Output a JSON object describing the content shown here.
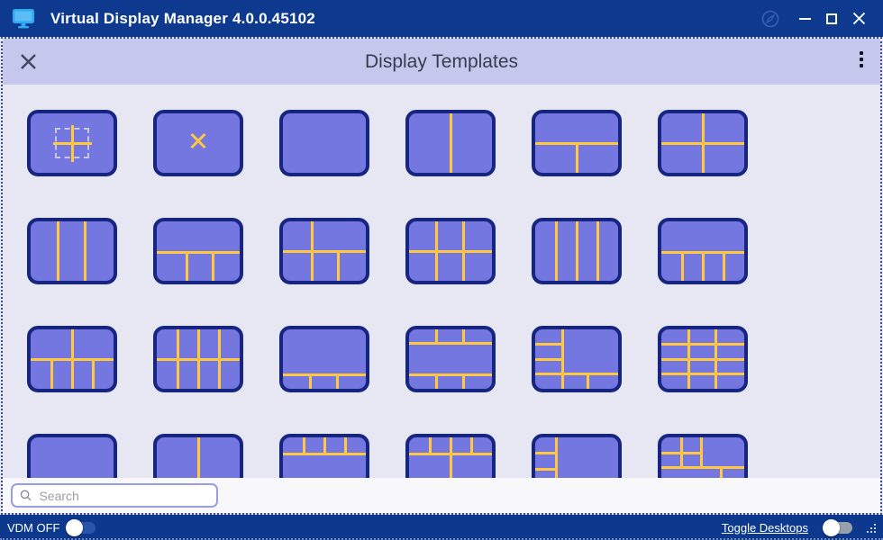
{
  "window": {
    "title": "Virtual Display Manager 4.0.0.45102"
  },
  "header": {
    "title": "Display Templates"
  },
  "search": {
    "placeholder": "Search"
  },
  "statusbar": {
    "vdm_label": "VDM OFF",
    "vdm_toggle_state": "off",
    "toggle_desktops_label": "Toggle Desktops",
    "desktops_toggle_state": "off"
  },
  "icons": {
    "app": "monitor-icon",
    "titlebar": [
      "compass-icon",
      "minimize-icon",
      "maximize-icon",
      "close-icon"
    ],
    "header": [
      "x-close-icon",
      "kebab-menu-icon"
    ],
    "search": "magnifier-icon",
    "statusbar": "resize-grip-icon"
  },
  "colors": {
    "titlebar_bg": "#0d3a8e",
    "statusbar_bg": "#0c398d",
    "header_bg": "#c5c7ec",
    "content_bg": "#e7e7f4",
    "tile_fill": "#7477e0",
    "tile_border": "#16257f",
    "split_line_yellow": "#ffc83e",
    "app_icon_blue": "#2fa9f1"
  },
  "templates": [
    {
      "name": "new-custom",
      "dashed": true,
      "lines": [
        {
          "o": "h",
          "p": 50,
          "a": 27,
          "b": 74
        },
        {
          "o": "v",
          "p": 50,
          "a": 20,
          "b": 82
        }
      ]
    },
    {
      "name": "close-x",
      "x_mark": true,
      "lines": []
    },
    {
      "name": "single",
      "lines": []
    },
    {
      "name": "two-columns",
      "lines": [
        {
          "o": "v",
          "p": 50,
          "a": 0,
          "b": 100
        }
      ]
    },
    {
      "name": "one-top-two-bottom",
      "lines": [
        {
          "o": "h",
          "p": 50,
          "a": 0,
          "b": 100
        },
        {
          "o": "v",
          "p": 50,
          "a": 50,
          "b": 100
        }
      ]
    },
    {
      "name": "quad",
      "lines": [
        {
          "o": "h",
          "p": 50,
          "a": 0,
          "b": 100
        },
        {
          "o": "v",
          "p": 50,
          "a": 0,
          "b": 100
        }
      ]
    },
    {
      "name": "three-columns",
      "lines": [
        {
          "o": "v",
          "p": 33,
          "a": 0,
          "b": 100
        },
        {
          "o": "v",
          "p": 66,
          "a": 0,
          "b": 100
        }
      ]
    },
    {
      "name": "one-top-three-bottom",
      "lines": [
        {
          "o": "h",
          "p": 52,
          "a": 0,
          "b": 100
        },
        {
          "o": "v",
          "p": 36,
          "a": 52,
          "b": 100
        },
        {
          "o": "v",
          "p": 68,
          "a": 52,
          "b": 100
        }
      ]
    },
    {
      "name": "two-top-three-bottom",
      "lines": [
        {
          "o": "h",
          "p": 50,
          "a": 0,
          "b": 100
        },
        {
          "o": "v",
          "p": 35,
          "a": 0,
          "b": 100
        },
        {
          "o": "v",
          "p": 67,
          "a": 50,
          "b": 100
        }
      ]
    },
    {
      "name": "grid-3x2",
      "lines": [
        {
          "o": "h",
          "p": 50,
          "a": 0,
          "b": 100
        },
        {
          "o": "v",
          "p": 33,
          "a": 0,
          "b": 100
        },
        {
          "o": "v",
          "p": 66,
          "a": 0,
          "b": 100
        }
      ]
    },
    {
      "name": "four-columns",
      "lines": [
        {
          "o": "v",
          "p": 25,
          "a": 0,
          "b": 100
        },
        {
          "o": "v",
          "p": 50,
          "a": 0,
          "b": 100
        },
        {
          "o": "v",
          "p": 75,
          "a": 0,
          "b": 100
        }
      ]
    },
    {
      "name": "one-top-four-bottom",
      "lines": [
        {
          "o": "h",
          "p": 52,
          "a": 0,
          "b": 100
        },
        {
          "o": "v",
          "p": 26,
          "a": 52,
          "b": 100
        },
        {
          "o": "v",
          "p": 51,
          "a": 52,
          "b": 100
        },
        {
          "o": "v",
          "p": 76,
          "a": 52,
          "b": 100
        }
      ]
    },
    {
      "name": "two-top-four-bottom",
      "lines": [
        {
          "o": "h",
          "p": 50,
          "a": 0,
          "b": 100
        },
        {
          "o": "v",
          "p": 50,
          "a": 0,
          "b": 100
        },
        {
          "o": "v",
          "p": 25,
          "a": 50,
          "b": 100
        },
        {
          "o": "v",
          "p": 75,
          "a": 50,
          "b": 100
        }
      ]
    },
    {
      "name": "grid-4x2",
      "lines": [
        {
          "o": "h",
          "p": 50,
          "a": 0,
          "b": 100
        },
        {
          "o": "v",
          "p": 25,
          "a": 0,
          "b": 100
        },
        {
          "o": "v",
          "p": 50,
          "a": 0,
          "b": 100
        },
        {
          "o": "v",
          "p": 75,
          "a": 0,
          "b": 100
        }
      ]
    },
    {
      "name": "one-large-three-bottom",
      "lines": [
        {
          "o": "h",
          "p": 76,
          "a": 0,
          "b": 100
        },
        {
          "o": "v",
          "p": 33,
          "a": 76,
          "b": 100
        },
        {
          "o": "v",
          "p": 66,
          "a": 76,
          "b": 100
        }
      ]
    },
    {
      "name": "three-top-middle-three-bottom",
      "lines": [
        {
          "o": "h",
          "p": 24,
          "a": 0,
          "b": 100
        },
        {
          "o": "h",
          "p": 76,
          "a": 0,
          "b": 100
        },
        {
          "o": "v",
          "p": 33,
          "a": 0,
          "b": 24
        },
        {
          "o": "v",
          "p": 66,
          "a": 0,
          "b": 24
        },
        {
          "o": "v",
          "p": 33,
          "a": 76,
          "b": 100
        },
        {
          "o": "v",
          "p": 66,
          "a": 76,
          "b": 100
        }
      ]
    },
    {
      "name": "left-three-right-large-bottom-strip",
      "lines": [
        {
          "o": "v",
          "p": 33,
          "a": 0,
          "b": 100
        },
        {
          "o": "h",
          "p": 25,
          "a": 0,
          "b": 33
        },
        {
          "o": "h",
          "p": 50,
          "a": 0,
          "b": 33
        },
        {
          "o": "h",
          "p": 75,
          "a": 0,
          "b": 100
        },
        {
          "o": "v",
          "p": 64,
          "a": 75,
          "b": 100
        }
      ]
    },
    {
      "name": "grid-3x4",
      "lines": [
        {
          "o": "v",
          "p": 33,
          "a": 0,
          "b": 100
        },
        {
          "o": "v",
          "p": 66,
          "a": 0,
          "b": 100
        },
        {
          "o": "h",
          "p": 25,
          "a": 0,
          "b": 100
        },
        {
          "o": "h",
          "p": 50,
          "a": 0,
          "b": 100
        },
        {
          "o": "h",
          "p": 75,
          "a": 0,
          "b": 100
        }
      ]
    },
    {
      "name": "single-b",
      "lines": []
    },
    {
      "name": "two-columns-b",
      "lines": [
        {
          "o": "v",
          "p": 50,
          "a": 0,
          "b": 100
        }
      ]
    },
    {
      "name": "four-top-one-large",
      "lines": [
        {
          "o": "h",
          "p": 28,
          "a": 0,
          "b": 100
        },
        {
          "o": "v",
          "p": 25,
          "a": 0,
          "b": 28
        },
        {
          "o": "v",
          "p": 50,
          "a": 0,
          "b": 28
        },
        {
          "o": "v",
          "p": 75,
          "a": 0,
          "b": 28
        }
      ]
    },
    {
      "name": "four-top-two-bottom",
      "lines": [
        {
          "o": "h",
          "p": 28,
          "a": 0,
          "b": 100
        },
        {
          "o": "v",
          "p": 25,
          "a": 0,
          "b": 28
        },
        {
          "o": "v",
          "p": 75,
          "a": 0,
          "b": 28
        },
        {
          "o": "v",
          "p": 50,
          "a": 0,
          "b": 100
        }
      ]
    },
    {
      "name": "left-three-right-large",
      "lines": [
        {
          "o": "v",
          "p": 25,
          "a": 0,
          "b": 100
        },
        {
          "o": "h",
          "p": 27,
          "a": 0,
          "b": 25
        },
        {
          "o": "h",
          "p": 54,
          "a": 0,
          "b": 25
        }
      ]
    },
    {
      "name": "complex-mixed",
      "lines": [
        {
          "o": "v",
          "p": 24,
          "a": 0,
          "b": 51
        },
        {
          "o": "v",
          "p": 48,
          "a": 0,
          "b": 51
        },
        {
          "o": "h",
          "p": 26,
          "a": 0,
          "b": 48
        },
        {
          "o": "h",
          "p": 51,
          "a": 0,
          "b": 100
        },
        {
          "o": "v",
          "p": 72,
          "a": 51,
          "b": 100
        }
      ]
    }
  ]
}
